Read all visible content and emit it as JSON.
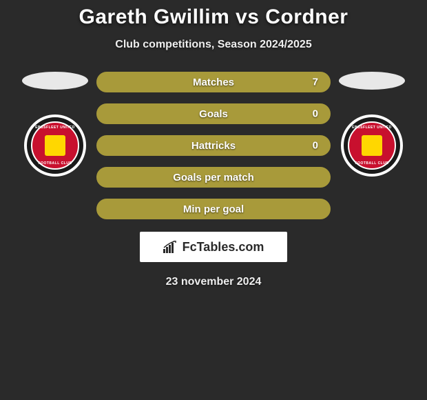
{
  "title": "Gareth Gwillim vs Cordner",
  "subtitle": "Club competitions, Season 2024/2025",
  "date": "23 november 2024",
  "brand": {
    "name": "FcTables.com"
  },
  "colors": {
    "bar_fill": "#a89a3a",
    "bar_border": "#a89a3a",
    "background": "#2a2a2a"
  },
  "left_player": {
    "club_text_top": "EBBSFLEET UNITED",
    "club_text_bottom": "FOOTBALL CLUB"
  },
  "right_player": {
    "club_text_top": "EBBSFLEET UNITED",
    "club_text_bottom": "FOOTBALL CLUB"
  },
  "stats": [
    {
      "label": "Matches",
      "value": "7",
      "right_fill": 1.0,
      "has_value": true
    },
    {
      "label": "Goals",
      "value": "0",
      "right_fill": 1.0,
      "has_value": true
    },
    {
      "label": "Hattricks",
      "value": "0",
      "right_fill": 1.0,
      "has_value": true
    },
    {
      "label": "Goals per match",
      "value": "",
      "right_fill": 1.0,
      "has_value": false
    },
    {
      "label": "Min per goal",
      "value": "",
      "right_fill": 1.0,
      "has_value": false
    }
  ]
}
